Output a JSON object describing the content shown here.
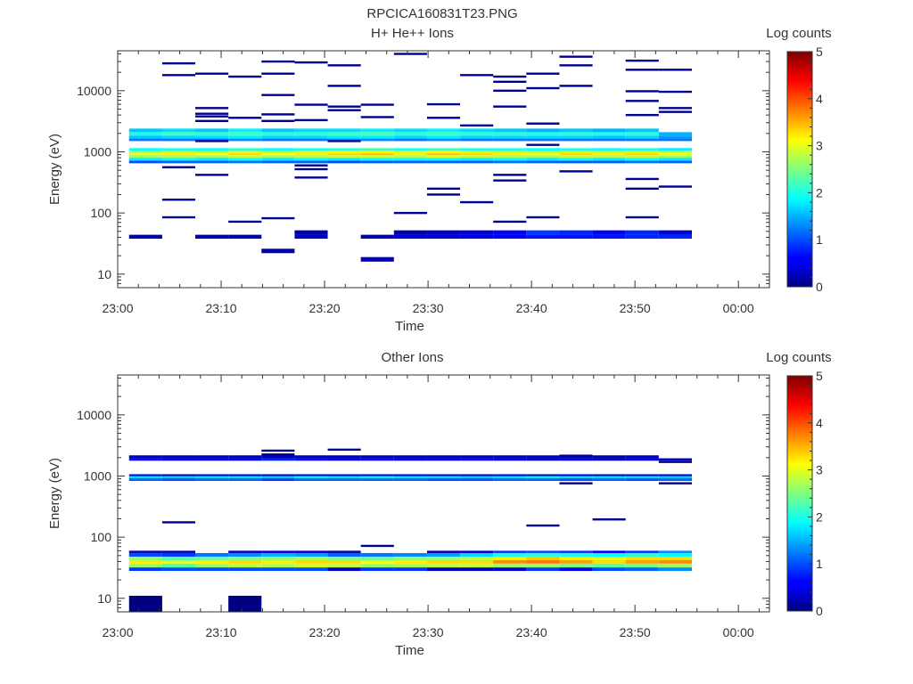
{
  "page_title": "RPCICA160831T23.PNG",
  "chart_data": [
    {
      "type": "heatmap",
      "title": "H+ He++ Ions",
      "xlabel": "Time",
      "ylabel": "Energy (eV)",
      "x_ticks": [
        "23:00",
        "23:10",
        "23:20",
        "23:30",
        "23:40",
        "23:50",
        "00:00"
      ],
      "xlim_minutes": [
        0,
        63
      ],
      "y_scale": "log",
      "y_ticks": [
        10,
        100,
        1000,
        10000
      ],
      "ylim": [
        6,
        45000
      ],
      "colorbar": {
        "label": "Log counts",
        "range": [
          0,
          5
        ],
        "ticks": [
          0,
          1,
          2,
          3,
          4,
          5
        ]
      },
      "time_bins_minutes": [
        1.1,
        4.3,
        7.5,
        10.7,
        13.9,
        17.1,
        20.3,
        23.5,
        26.7,
        29.9,
        33.1,
        36.3,
        39.5,
        42.7,
        45.9,
        49.1,
        52.3,
        55.5
      ],
      "bands": [
        {
          "e_low": 650,
          "e_high": 720,
          "v": [
            1.0,
            1.1,
            1.1,
            1.2,
            1.1,
            1.1,
            1.0,
            1.1,
            1.1,
            1.1,
            1.1,
            1.2,
            1.1,
            1.1,
            1.1,
            1.2,
            1.1
          ]
        },
        {
          "e_low": 720,
          "e_high": 800,
          "v": [
            1.8,
            1.9,
            1.8,
            1.9,
            1.8,
            1.9,
            1.8,
            1.9,
            1.9,
            1.9,
            1.8,
            1.9,
            1.8,
            1.9,
            1.8,
            1.9,
            1.8
          ]
        },
        {
          "e_low": 800,
          "e_high": 880,
          "v": [
            2.6,
            2.7,
            2.6,
            2.8,
            2.6,
            2.7,
            2.8,
            2.8,
            2.7,
            2.9,
            2.8,
            2.7,
            2.6,
            2.8,
            2.7,
            2.8,
            2.6
          ]
        },
        {
          "e_low": 880,
          "e_high": 960,
          "v": [
            3.0,
            3.2,
            3.1,
            3.3,
            3.1,
            3.2,
            3.3,
            3.4,
            3.2,
            3.4,
            3.3,
            3.2,
            3.1,
            3.3,
            3.2,
            3.3,
            3.1
          ]
        },
        {
          "e_low": 960,
          "e_high": 1050,
          "v": [
            2.6,
            2.8,
            2.7,
            2.9,
            2.7,
            2.9,
            3.0,
            3.1,
            2.9,
            3.1,
            2.9,
            2.8,
            2.7,
            2.9,
            2.8,
            2.9,
            2.7
          ]
        },
        {
          "e_low": 1050,
          "e_high": 1150,
          "v": [
            1.9,
            2.0,
            1.9,
            2.1,
            1.9,
            2.0,
            2.1,
            2.2,
            2.0,
            2.2,
            2.0,
            2.0,
            1.9,
            2.0,
            1.9,
            2.0,
            1.8
          ]
        },
        {
          "e_low": 1500,
          "e_high": 1650,
          "v": [
            1.2,
            1.2,
            1.2,
            1.3,
            1.2,
            1.2,
            1.3,
            1.3,
            1.2,
            1.3,
            1.2,
            1.2,
            1.2,
            1.2,
            1.2,
            1.2,
            1.2
          ]
        },
        {
          "e_low": 1650,
          "e_high": 1850,
          "v": [
            1.6,
            1.7,
            1.7,
            1.8,
            1.7,
            1.7,
            1.8,
            1.8,
            1.7,
            1.8,
            1.7,
            1.7,
            1.7,
            1.7,
            1.6,
            1.7,
            1.4
          ]
        },
        {
          "e_low": 1850,
          "e_high": 2100,
          "v": [
            2.0,
            2.2,
            2.1,
            2.2,
            2.1,
            2.1,
            2.2,
            2.3,
            2.1,
            2.2,
            2.1,
            2.1,
            2.0,
            2.1,
            2.0,
            2.1,
            1.5
          ]
        },
        {
          "e_low": 2100,
          "e_high": 2400,
          "v": [
            1.6,
            1.7,
            1.6,
            1.8,
            1.6,
            1.7,
            1.7,
            1.8,
            1.7,
            1.8,
            1.7,
            1.6,
            1.5,
            1.6,
            1.5,
            1.6,
            null
          ]
        },
        {
          "e_low": 38,
          "e_high": 44,
          "v": [
            0.2,
            null,
            0.2,
            0.2,
            null,
            0.3,
            null,
            0.2,
            0.4,
            0.4,
            0.5,
            0.6,
            0.7,
            0.7,
            0.7,
            0.8,
            0.8
          ]
        },
        {
          "e_low": 44,
          "e_high": 52,
          "v": [
            null,
            null,
            null,
            null,
            null,
            0.2,
            null,
            null,
            0.2,
            0.3,
            0.4,
            0.6,
            0.9,
            0.8,
            0.6,
            0.8,
            0.4
          ]
        },
        {
          "e_low": 22,
          "e_high": 26,
          "v": [
            null,
            null,
            null,
            null,
            0.2,
            null,
            null,
            null,
            null,
            null,
            null,
            null,
            null,
            null,
            null,
            null,
            null
          ]
        },
        {
          "e_low": 16,
          "e_high": 19,
          "v": [
            null,
            null,
            null,
            null,
            null,
            null,
            null,
            0.3,
            null,
            null,
            null,
            null,
            null,
            null,
            null,
            null,
            null
          ]
        }
      ],
      "scatter": [
        [
          1,
          28000
        ],
        [
          1,
          18000
        ],
        [
          1,
          560
        ],
        [
          1,
          165
        ],
        [
          1,
          85
        ],
        [
          2,
          19000
        ],
        [
          2,
          5200
        ],
        [
          2,
          4200
        ],
        [
          2,
          3800
        ],
        [
          2,
          3200
        ],
        [
          2,
          1500
        ],
        [
          2,
          420
        ],
        [
          3,
          17000
        ],
        [
          3,
          3600
        ],
        [
          3,
          72
        ],
        [
          4,
          30000
        ],
        [
          4,
          19000
        ],
        [
          4,
          8500
        ],
        [
          4,
          4100
        ],
        [
          4,
          3200
        ],
        [
          4,
          82
        ],
        [
          5,
          29000
        ],
        [
          5,
          5900
        ],
        [
          5,
          3300
        ],
        [
          5,
          600
        ],
        [
          5,
          520
        ],
        [
          5,
          380
        ],
        [
          6,
          26000
        ],
        [
          6,
          12000
        ],
        [
          6,
          5500
        ],
        [
          6,
          4800
        ],
        [
          6,
          1500
        ],
        [
          7,
          5900
        ],
        [
          7,
          3700
        ],
        [
          8,
          40000
        ],
        [
          8,
          100
        ],
        [
          9,
          6000
        ],
        [
          9,
          3600
        ],
        [
          9,
          250
        ],
        [
          9,
          200
        ],
        [
          10,
          18000
        ],
        [
          10,
          2700
        ],
        [
          10,
          150
        ],
        [
          11,
          17000
        ],
        [
          11,
          14000
        ],
        [
          11,
          10000
        ],
        [
          11,
          5500
        ],
        [
          11,
          420
        ],
        [
          11,
          340
        ],
        [
          11,
          72
        ],
        [
          12,
          19000
        ],
        [
          12,
          11000
        ],
        [
          12,
          2900
        ],
        [
          12,
          1300
        ],
        [
          12,
          85
        ],
        [
          13,
          36000
        ],
        [
          13,
          26000
        ],
        [
          13,
          12000
        ],
        [
          13,
          480
        ],
        [
          15,
          31000
        ],
        [
          15,
          22000
        ],
        [
          15,
          9800
        ],
        [
          15,
          6800
        ],
        [
          15,
          4000
        ],
        [
          15,
          360
        ],
        [
          15,
          250
        ],
        [
          15,
          85
        ],
        [
          16,
          22000
        ],
        [
          16,
          9600
        ],
        [
          16,
          5200
        ],
        [
          16,
          4500
        ],
        [
          16,
          270
        ]
      ]
    },
    {
      "type": "heatmap",
      "title": "Other Ions",
      "xlabel": "Time",
      "ylabel": "Energy (eV)",
      "x_ticks": [
        "23:00",
        "23:10",
        "23:20",
        "23:30",
        "23:40",
        "23:50",
        "00:00"
      ],
      "xlim_minutes": [
        0,
        63
      ],
      "y_scale": "log",
      "y_ticks": [
        10,
        100,
        1000,
        10000
      ],
      "ylim": [
        6,
        45000
      ],
      "colorbar": {
        "label": "Log counts",
        "range": [
          0,
          5
        ],
        "ticks": [
          0,
          1,
          2,
          3,
          4,
          5
        ]
      },
      "time_bins_minutes": [
        1.1,
        4.3,
        7.5,
        10.7,
        13.9,
        17.1,
        20.3,
        23.5,
        26.7,
        29.9,
        33.1,
        36.3,
        39.5,
        42.7,
        45.9,
        49.1,
        52.3,
        55.5
      ],
      "bands": [
        {
          "e_low": 28,
          "e_high": 32,
          "v": [
            0.9,
            1.0,
            1.0,
            1.0,
            1.0,
            1.0,
            0.3,
            0.9,
            0.9,
            0.3,
            0.3,
            0.4,
            0.9,
            0.5,
            1.0,
            1.1,
            1.3
          ]
        },
        {
          "e_low": 32,
          "e_high": 37,
          "v": [
            2.6,
            2.3,
            2.6,
            2.8,
            2.7,
            2.9,
            2.8,
            2.6,
            2.7,
            2.8,
            2.8,
            2.6,
            2.6,
            2.4,
            2.3,
            2.4,
            2.6
          ]
        },
        {
          "e_low": 37,
          "e_high": 42,
          "v": [
            3.2,
            3.0,
            3.2,
            3.3,
            3.2,
            3.3,
            3.3,
            3.1,
            3.2,
            3.3,
            3.3,
            3.7,
            3.8,
            3.6,
            3.3,
            3.6,
            3.7
          ]
        },
        {
          "e_low": 42,
          "e_high": 48,
          "v": [
            2.6,
            2.3,
            2.4,
            2.5,
            2.6,
            2.7,
            2.5,
            2.4,
            2.6,
            2.6,
            2.8,
            3.2,
            3.4,
            3.2,
            3.0,
            3.3,
            3.3
          ]
        },
        {
          "e_low": 48,
          "e_high": 55,
          "v": [
            1.0,
            0.9,
            1.2,
            1.3,
            1.5,
            1.4,
            1.1,
            1.2,
            1.3,
            1.4,
            1.7,
            2.0,
            2.1,
            2.0,
            1.9,
            2.1,
            1.9
          ]
        },
        {
          "e_low": 55,
          "e_high": 60,
          "v": [
            0.3,
            0.3,
            null,
            0.3,
            0.4,
            0.4,
            0.2,
            null,
            null,
            0.2,
            0.4,
            0.9,
            1.0,
            0.9,
            0.6,
            0.9,
            1.3
          ]
        },
        {
          "e_low": 830,
          "e_high": 920,
          "v": [
            1.1,
            1.0,
            1.1,
            1.1,
            0.9,
            1.1,
            1.1,
            1.1,
            1.1,
            1.0,
            1.0,
            1.1,
            1.1,
            1.0,
            1.1,
            1.0,
            1.1
          ]
        },
        {
          "e_low": 920,
          "e_high": 1000,
          "v": [
            1.7,
            1.6,
            1.7,
            1.7,
            1.6,
            1.8,
            1.7,
            1.8,
            1.7,
            1.7,
            1.6,
            1.7,
            1.8,
            1.7,
            1.7,
            1.7,
            1.6
          ]
        },
        {
          "e_low": 1000,
          "e_high": 1070,
          "v": [
            0.6,
            0.3,
            0.5,
            0.5,
            0.4,
            0.5,
            0.5,
            0.5,
            0.6,
            0.5,
            0.4,
            0.6,
            0.3,
            0.5,
            0.4,
            0.5,
            0.4
          ]
        },
        {
          "e_low": 1780,
          "e_high": 1950,
          "v": [
            0.7,
            0.6,
            0.5,
            0.6,
            0.8,
            0.7,
            0.5,
            0.7,
            0.6,
            0.6,
            0.7,
            0.6,
            0.3,
            0.6,
            0.4,
            0.5,
            0.3
          ]
        },
        {
          "e_low": 1950,
          "e_high": 2180,
          "v": [
            0.3,
            0.3,
            0.3,
            0.3,
            0.3,
            0.3,
            0.3,
            0.3,
            0.3,
            0.3,
            0.3,
            0.3,
            0.4,
            0.3,
            0.2,
            0.3,
            null
          ]
        },
        {
          "e_low": 6,
          "e_high": 11,
          "v": [
            0.0,
            null,
            null,
            0.0,
            null,
            null,
            null,
            null,
            null,
            null,
            null,
            null,
            null,
            null,
            null,
            null,
            null
          ]
        }
      ],
      "scatter": [
        [
          1,
          175
        ],
        [
          4,
          2600
        ],
        [
          4,
          2250
        ],
        [
          6,
          2700
        ],
        [
          7,
          72
        ],
        [
          12,
          155
        ],
        [
          14,
          195
        ],
        [
          13,
          760
        ],
        [
          16,
          760
        ],
        [
          13,
          2150
        ],
        [
          16,
          1700
        ]
      ]
    }
  ]
}
